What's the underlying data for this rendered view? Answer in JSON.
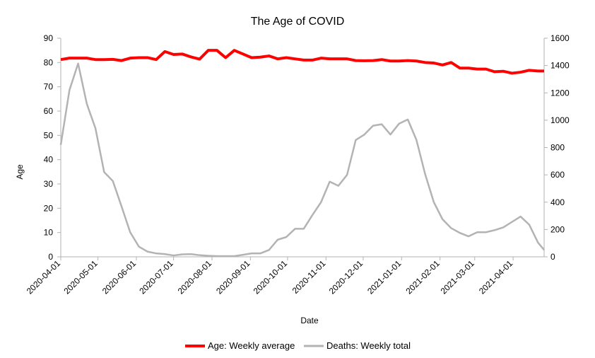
{
  "chart_data": {
    "type": "line",
    "title": "The Age of COVID",
    "xlabel": "Date",
    "ylabel": "Age",
    "y2label": "",
    "ylim": [
      0,
      90
    ],
    "y2lim": [
      0,
      1600
    ],
    "yticks": [
      "0",
      "10",
      "20",
      "30",
      "40",
      "50",
      "60",
      "70",
      "80",
      "90"
    ],
    "y2ticks": [
      "0",
      "200",
      "400",
      "600",
      "800",
      "1000",
      "1200",
      "1400",
      "1600"
    ],
    "xlim": [
      "2020-04-01",
      "2021-04-26"
    ],
    "xticks": [
      "2020-04-01",
      "2020-05-01",
      "2020-06-01",
      "2020-07-01",
      "2020-08-01",
      "2020-09-01",
      "2020-10-01",
      "2020-11-01",
      "2020-12-01",
      "2021-01-01",
      "2021-02-01",
      "2021-03-01",
      "2021-04-01"
    ],
    "grid": false,
    "legend_position": "bottom",
    "x": [
      "2020-04-01",
      "2020-04-08",
      "2020-04-15",
      "2020-04-22",
      "2020-04-29",
      "2020-05-06",
      "2020-05-13",
      "2020-05-20",
      "2020-05-27",
      "2020-06-03",
      "2020-06-10",
      "2020-06-17",
      "2020-06-24",
      "2020-07-01",
      "2020-07-08",
      "2020-07-15",
      "2020-07-22",
      "2020-07-29",
      "2020-08-05",
      "2020-08-12",
      "2020-08-19",
      "2020-08-26",
      "2020-09-02",
      "2020-09-09",
      "2020-09-16",
      "2020-09-23",
      "2020-09-30",
      "2020-10-07",
      "2020-10-14",
      "2020-10-21",
      "2020-10-28",
      "2020-11-04",
      "2020-11-11",
      "2020-11-18",
      "2020-11-25",
      "2020-12-02",
      "2020-12-09",
      "2020-12-16",
      "2020-12-23",
      "2020-12-30",
      "2021-01-06",
      "2021-01-13",
      "2021-01-20",
      "2021-01-27",
      "2021-02-03",
      "2021-02-10",
      "2021-02-17",
      "2021-02-24",
      "2021-03-03",
      "2021-03-10",
      "2021-03-17",
      "2021-03-24",
      "2021-03-31",
      "2021-04-07",
      "2021-04-14",
      "2021-04-21",
      "2021-04-26"
    ],
    "series": [
      {
        "name": "Age: Weekly average",
        "axis": "left",
        "color": "#ff0000",
        "values": [
          81.2,
          81.8,
          81.8,
          81.8,
          81.2,
          81.2,
          81.3,
          80.8,
          81.8,
          82.0,
          82.0,
          81.2,
          84.5,
          83.3,
          83.5,
          82.3,
          81.4,
          85.0,
          85.0,
          82.0,
          85.0,
          83.5,
          82.0,
          82.2,
          82.7,
          81.5,
          82.0,
          81.5,
          81.0,
          81.0,
          81.8,
          81.5,
          81.5,
          81.5,
          80.8,
          80.7,
          80.8,
          81.2,
          80.6,
          80.6,
          80.8,
          80.6,
          80.0,
          79.8,
          79.0,
          80.0,
          77.7,
          77.7,
          77.3,
          77.3,
          76.2,
          76.4,
          75.6,
          76.0,
          76.8,
          76.5,
          76.5
        ]
      },
      {
        "name": "Deaths: Weekly total",
        "axis": "right",
        "color": "#b3b3b3",
        "values": [
          820,
          1220,
          1415,
          1120,
          940,
          620,
          555,
          370,
          180,
          75,
          38,
          25,
          20,
          10,
          18,
          20,
          12,
          8,
          5,
          5,
          5,
          15,
          25,
          25,
          50,
          125,
          145,
          205,
          205,
          305,
          400,
          550,
          520,
          600,
          855,
          895,
          960,
          970,
          895,
          975,
          1005,
          855,
          605,
          400,
          275,
          210,
          175,
          150,
          180,
          180,
          195,
          215,
          255,
          295,
          235,
          105,
          50
        ]
      }
    ]
  }
}
